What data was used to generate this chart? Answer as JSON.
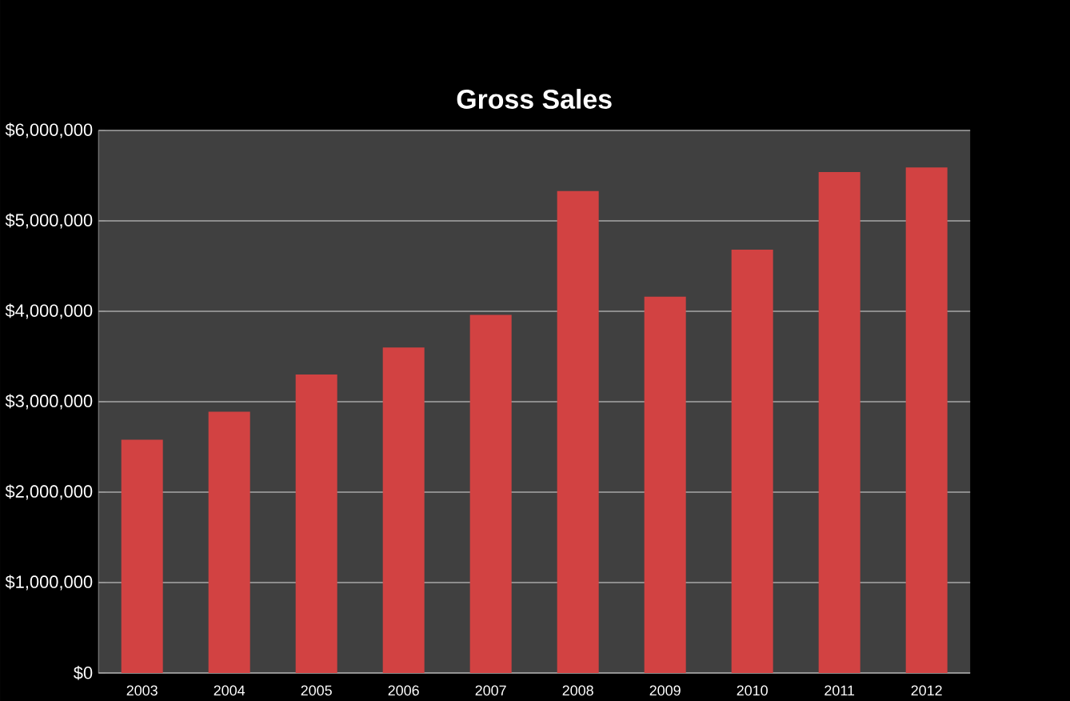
{
  "chart_data": {
    "type": "bar",
    "title": "Gross Sales",
    "categories": [
      "2003",
      "2004",
      "2005",
      "2006",
      "2007",
      "2008",
      "2009",
      "2010",
      "2011",
      "2012"
    ],
    "values": [
      2580000,
      2890000,
      3300000,
      3600000,
      3960000,
      5330000,
      4160000,
      4680000,
      5540000,
      5590000
    ],
    "color": "#d24242",
    "ylim": [
      0,
      6000000
    ],
    "yticks": [
      {
        "value": 0,
        "label": "$0"
      },
      {
        "value": 1000000,
        "label": "$1,000,000"
      },
      {
        "value": 2000000,
        "label": "$2,000,000"
      },
      {
        "value": 3000000,
        "label": "$3,000,000"
      },
      {
        "value": 4000000,
        "label": "$4,000,000"
      },
      {
        "value": 5000000,
        "label": "$5,000,000"
      },
      {
        "value": 6000000,
        "label": "$6,000,000"
      }
    ],
    "grid": "y"
  }
}
